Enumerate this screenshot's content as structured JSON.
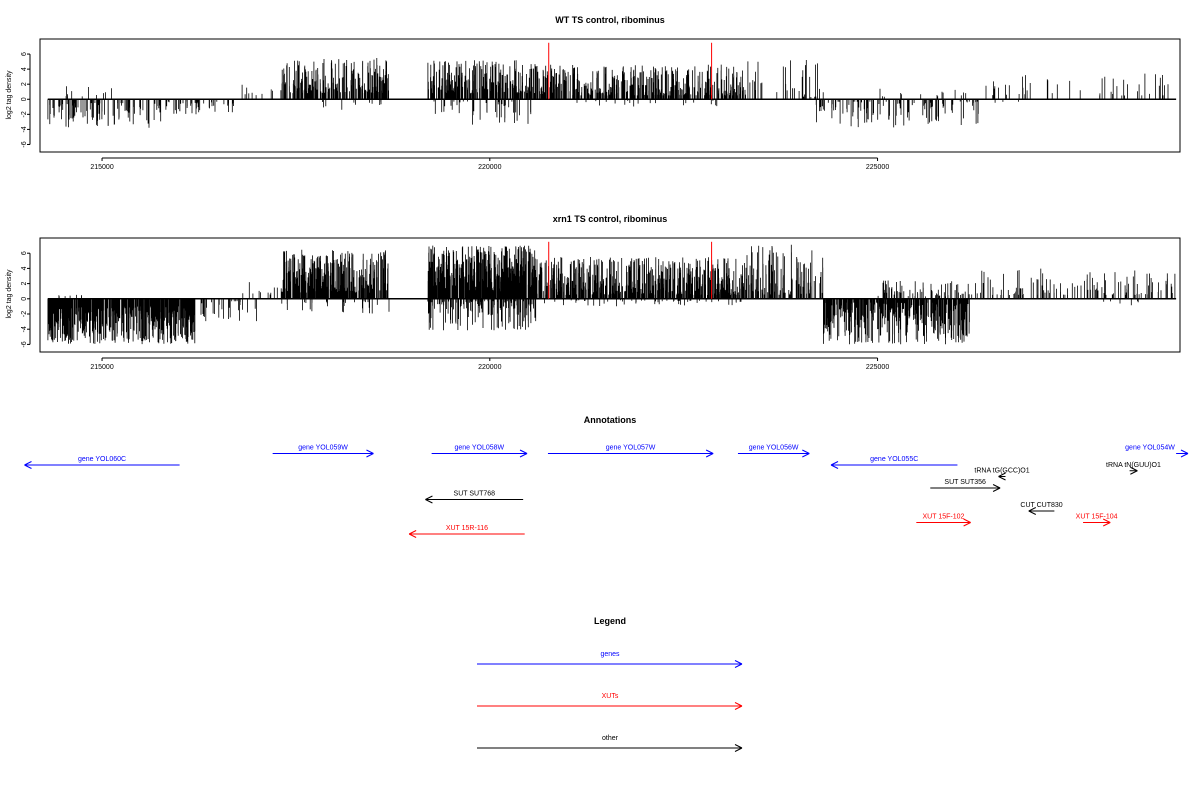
{
  "colors": {
    "gene": "#0000ff",
    "xut": "#ff0000",
    "other": "#000000",
    "marker": "#ff0000",
    "signal": "#000000",
    "frame": "#000000"
  },
  "chart_data": [
    {
      "type": "bar",
      "title": "WT TS control, ribominus",
      "ylabel": "log2 tag density",
      "xlim": [
        214200,
        228900
      ],
      "ylim": [
        -7,
        8
      ],
      "yticks": [
        -6,
        -4,
        -2,
        0,
        2,
        4,
        6
      ],
      "xticks": [
        215000,
        220000,
        225000
      ],
      "grid": false,
      "marker_positions": [
        220760,
        222860
      ],
      "marker_top": 7.5,
      "signal_regions": [
        {
          "start": 214300,
          "end": 215800,
          "sign": -1,
          "min": 0.5,
          "max": 3.8,
          "density": 0.07
        },
        {
          "start": 215800,
          "end": 216700,
          "sign": -1,
          "min": 0.3,
          "max": 2.0,
          "density": 0.05
        },
        {
          "start": 214500,
          "end": 215200,
          "sign": 1,
          "min": 0.3,
          "max": 1.8,
          "density": 0.015
        },
        {
          "start": 216800,
          "end": 217300,
          "sign": 1,
          "min": 0.4,
          "max": 2.5,
          "density": 0.02
        },
        {
          "start": 217300,
          "end": 218700,
          "sign": 1,
          "min": 0.8,
          "max": 5.5,
          "density": 0.16
        },
        {
          "start": 217800,
          "end": 218600,
          "sign": -1,
          "min": 0.3,
          "max": 1.4,
          "density": 0.015
        },
        {
          "start": 219200,
          "end": 220600,
          "sign": 1,
          "min": 0.8,
          "max": 5.2,
          "density": 0.18
        },
        {
          "start": 219200,
          "end": 220600,
          "sign": -1,
          "min": 0.3,
          "max": 3.5,
          "density": 0.03
        },
        {
          "start": 220600,
          "end": 223300,
          "sign": 1,
          "min": 0.5,
          "max": 4.6,
          "density": 0.15
        },
        {
          "start": 221000,
          "end": 223000,
          "sign": -1,
          "min": 0.2,
          "max": 1.0,
          "density": 0.01
        },
        {
          "start": 223300,
          "end": 224300,
          "sign": 1,
          "min": 0.3,
          "max": 5.5,
          "density": 0.035
        },
        {
          "start": 224200,
          "end": 226300,
          "sign": -1,
          "min": 0.3,
          "max": 3.8,
          "density": 0.055
        },
        {
          "start": 225000,
          "end": 226200,
          "sign": 1,
          "min": 0.3,
          "max": 1.6,
          "density": 0.012
        },
        {
          "start": 226300,
          "end": 228900,
          "sign": 1,
          "min": 0.5,
          "max": 3.5,
          "density": 0.018
        },
        {
          "start": 226500,
          "end": 227200,
          "sign": -1,
          "min": 0.3,
          "max": 1.0,
          "density": 0.004
        }
      ]
    },
    {
      "type": "bar",
      "title": "xrn1 TS control, ribominus",
      "ylabel": "log2 tag density",
      "xlim": [
        214200,
        228900
      ],
      "ylim": [
        -7,
        8
      ],
      "yticks": [
        -6,
        -4,
        -2,
        0,
        2,
        4,
        6
      ],
      "xticks": [
        215000,
        220000,
        225000
      ],
      "grid": false,
      "marker_positions": [
        220760,
        222860
      ],
      "marker_top": 7.5,
      "signal_regions": [
        {
          "start": 214300,
          "end": 216200,
          "sign": -1,
          "min": 1.0,
          "max": 6.0,
          "density": 0.3
        },
        {
          "start": 216200,
          "end": 217000,
          "sign": -1,
          "min": 0.3,
          "max": 3.0,
          "density": 0.04
        },
        {
          "start": 214400,
          "end": 215000,
          "sign": 1,
          "min": 0.3,
          "max": 1.4,
          "density": 0.012
        },
        {
          "start": 216800,
          "end": 217300,
          "sign": 1,
          "min": 0.4,
          "max": 2.5,
          "density": 0.02
        },
        {
          "start": 217300,
          "end": 218700,
          "sign": 1,
          "min": 0.8,
          "max": 6.5,
          "density": 0.25
        },
        {
          "start": 217300,
          "end": 218700,
          "sign": -1,
          "min": 0.3,
          "max": 2.0,
          "density": 0.02
        },
        {
          "start": 219200,
          "end": 220600,
          "sign": 1,
          "min": 1.0,
          "max": 7.0,
          "density": 0.35
        },
        {
          "start": 219200,
          "end": 220600,
          "sign": -1,
          "min": 0.3,
          "max": 4.2,
          "density": 0.12
        },
        {
          "start": 220600,
          "end": 223300,
          "sign": 1,
          "min": 0.5,
          "max": 5.5,
          "density": 0.22
        },
        {
          "start": 220600,
          "end": 223300,
          "sign": -1,
          "min": 0.2,
          "max": 1.0,
          "density": 0.02
        },
        {
          "start": 223300,
          "end": 224300,
          "sign": 1,
          "min": 0.5,
          "max": 7.2,
          "density": 0.12
        },
        {
          "start": 224300,
          "end": 226200,
          "sign": -1,
          "min": 0.5,
          "max": 6.0,
          "density": 0.22
        },
        {
          "start": 225000,
          "end": 226300,
          "sign": 1,
          "min": 0.3,
          "max": 2.5,
          "density": 0.05
        },
        {
          "start": 226300,
          "end": 228900,
          "sign": 1,
          "min": 0.5,
          "max": 4.0,
          "density": 0.045
        },
        {
          "start": 227900,
          "end": 228500,
          "sign": -1,
          "min": 0.3,
          "max": 1.0,
          "density": 0.01
        }
      ]
    }
  ],
  "annotations": {
    "title": "Annotations",
    "features": [
      {
        "label": "gene YOL060C",
        "category": "gene",
        "start": 216000,
        "end": 214000,
        "row": 2
      },
      {
        "label": "gene YOL059W",
        "category": "gene",
        "start": 217200,
        "end": 218500,
        "row": 1
      },
      {
        "label": "gene YOL058W",
        "category": "gene",
        "start": 219250,
        "end": 220480,
        "row": 1
      },
      {
        "label": "gene YOL057W",
        "category": "gene",
        "start": 220750,
        "end": 222880,
        "row": 1
      },
      {
        "label": "gene YOL056W",
        "category": "gene",
        "start": 223200,
        "end": 224120,
        "row": 1
      },
      {
        "label": "gene YOL055C",
        "category": "gene",
        "start": 226030,
        "end": 224400,
        "row": 2
      },
      {
        "label": "gene YOL054W",
        "category": "gene",
        "start": 228850,
        "end": 230000,
        "row": 1
      },
      {
        "label": "tRNA tG(GCC)O1",
        "category": "other",
        "start": 226650,
        "end": 226560,
        "row": 3
      },
      {
        "label": "tRNA tN(GUU)O1",
        "category": "other",
        "start": 228250,
        "end": 228350,
        "row": 2.5
      },
      {
        "label": "SUT SUT356",
        "category": "other",
        "start": 225680,
        "end": 226580,
        "row": 4
      },
      {
        "label": "SUT SUT768",
        "category": "other",
        "start": 220430,
        "end": 219170,
        "row": 5
      },
      {
        "label": "CUT CUT830",
        "category": "other",
        "start": 227280,
        "end": 226950,
        "row": 6
      },
      {
        "label": "XUT 15F-102",
        "category": "xut",
        "start": 225500,
        "end": 226200,
        "row": 7
      },
      {
        "label": "XUT 15F-104",
        "category": "xut",
        "start": 227650,
        "end": 228000,
        "row": 7
      },
      {
        "label": "XUT 15R-116",
        "category": "xut",
        "start": 220450,
        "end": 218960,
        "row": 8
      }
    ]
  },
  "legend": {
    "title": "Legend",
    "items": [
      {
        "label": "genes",
        "category": "gene"
      },
      {
        "label": "XUTs",
        "category": "xut"
      },
      {
        "label": "other",
        "category": "other"
      }
    ]
  }
}
